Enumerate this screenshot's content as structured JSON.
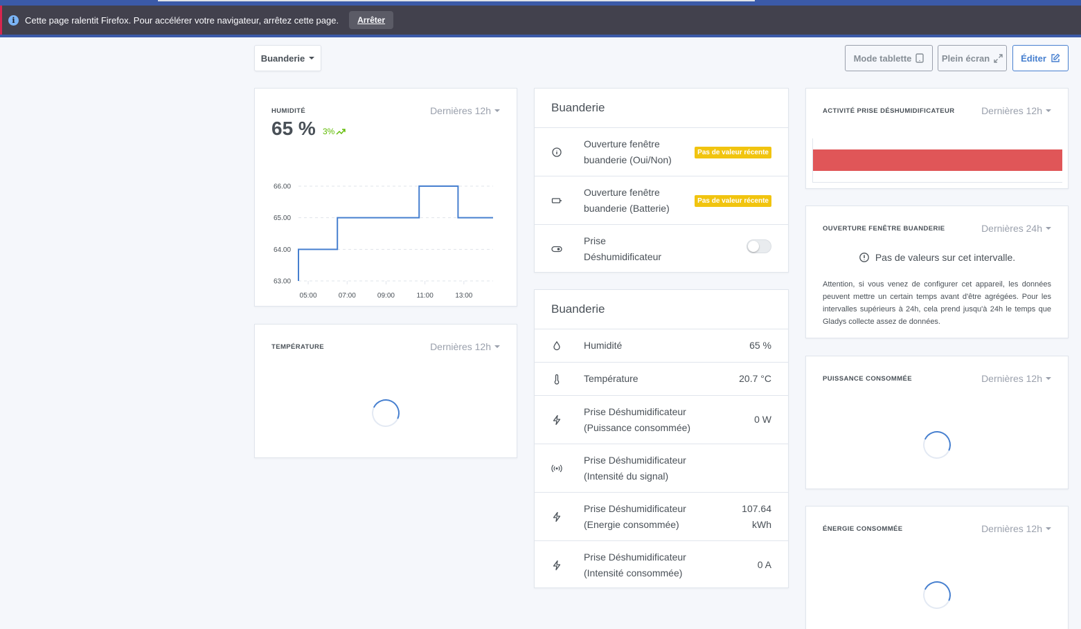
{
  "notification": {
    "message": "Cette page ralentit Firefox. Pour accélérer votre navigateur, arrêtez cette page.",
    "stop_label": "Arrêter"
  },
  "toolbar": {
    "room_label": "Buanderie",
    "tablet_label": "Mode tablette",
    "fullscreen_label": "Plein écran",
    "edit_label": "Éditer"
  },
  "humidity_card": {
    "label": "HUMIDITÉ",
    "range": "Dernières 12h",
    "value": "65 %",
    "trend": "3%"
  },
  "chart_data": {
    "type": "line",
    "step": true,
    "x_ticks": [
      "05:00",
      "07:00",
      "09:00",
      "11:00",
      "13:00"
    ],
    "y_ticks": [
      "66.00",
      "65.00",
      "64.00",
      "63.00"
    ],
    "ylim": [
      63,
      66
    ],
    "xlim": [
      4.5,
      14.5
    ],
    "series": [
      {
        "x": [
          4.5,
          6.5,
          10.7,
          12.7,
          14.5
        ],
        "values": [
          64,
          65,
          66,
          65,
          65
        ]
      }
    ],
    "color": "#467fcf",
    "grid": true
  },
  "temperature_card": {
    "label": "TEMPÉRATURE",
    "range": "Dernières 12h"
  },
  "room_list_1": {
    "title": "Buanderie",
    "rows": [
      {
        "name_line1": "Ouverture fenêtre",
        "name_line2": "buanderie (Oui/Non)",
        "badge": "Pas de valeur récente"
      },
      {
        "name_line1": "Ouverture fenêtre",
        "name_line2": "buanderie (Batterie)",
        "badge": "Pas de valeur récente"
      },
      {
        "name_line1": "Prise",
        "name_line2": "Déshumidificateur",
        "toggle": false
      }
    ]
  },
  "room_list_2": {
    "title": "Buanderie",
    "rows": [
      {
        "name_line1": "Humidité",
        "value_line1": "65 %"
      },
      {
        "name_line1": "Température",
        "value_line1": "20.7 °C"
      },
      {
        "name_line1": "Prise Déshumidificateur",
        "name_line2": "(Puissance consommée)",
        "value_line1": "0 W"
      },
      {
        "name_line1": "Prise Déshumidificateur",
        "name_line2": "(Intensité du signal)",
        "value_line1": ""
      },
      {
        "name_line1": "Prise Déshumidificateur",
        "name_line2": "(Energie consommée)",
        "value_line1": "107.64",
        "value_line2": "kWh"
      },
      {
        "name_line1": "Prise Déshumidificateur",
        "name_line2": "(Intensité consommée)",
        "value_line1": "0 A"
      }
    ]
  },
  "activity_card": {
    "label": "ACTIVITÉ PRISE DÉSHUMIDIFICATEUR",
    "range": "Dernières 12h",
    "bar_color": "#e05658",
    "bar_fill": 1.0
  },
  "window_card": {
    "label": "OUVERTURE FENÊTRE BUANDERIE",
    "range": "Dernières 24h",
    "no_values": "Pas de valeurs sur cet intervalle.",
    "warning": "Attention, si vous venez de configurer cet appareil, les données peuvent mettre un certain temps avant d'être agrégées. Pour les intervalles supérieurs à 24h, cela prend jusqu'à 24h le temps que Gladys collecte assez de données."
  },
  "power_card": {
    "label": "PUISSANCE CONSOMMÉE",
    "range": "Dernières 12h"
  },
  "energy_card": {
    "label": "ÉNERGIE CONSOMMÉE",
    "range": "Dernières 12h"
  }
}
